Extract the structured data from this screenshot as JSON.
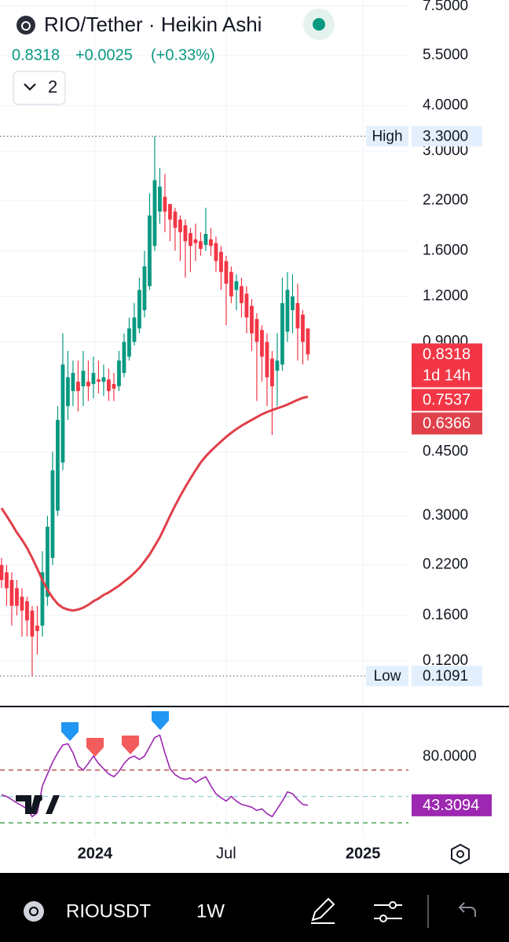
{
  "header": {
    "change": "+0.0025",
    "change_pct": "(+0.33%)",
    "indicators_count": "2"
  },
  "footer": {
    "symbol": "RIOUSDT",
    "interval": "1W"
  },
  "chart_data": [
    {
      "type": "candlestick",
      "title": "RIO/Tether · Heikin Ashi",
      "up_color": "#089981",
      "down_color": "#f23645",
      "log_scale": true,
      "grid": true,
      "ylim": [
        0.09,
        7.8
      ],
      "yticks": [
        {
          "value": 7.5,
          "label": "7.5000"
        },
        {
          "value": 5.5,
          "label": "5.5000"
        },
        {
          "value": 4,
          "label": "4.0000"
        },
        {
          "value": 3,
          "label": "3.0000"
        },
        {
          "value": 2.2,
          "label": "2.2000"
        },
        {
          "value": 1.6,
          "label": "1.6000"
        },
        {
          "value": 1.2,
          "label": "1.2000"
        },
        {
          "value": 0.9,
          "label": "0.9000"
        },
        {
          "value": 0.45,
          "label": "0.4500"
        },
        {
          "value": 0.3,
          "label": "0.3000"
        },
        {
          "value": 0.22,
          "label": "0.2200"
        },
        {
          "value": 0.16,
          "label": "0.1600"
        },
        {
          "value": 0.12,
          "label": "0.1200"
        }
      ],
      "open": [
        0.22,
        0.21,
        0.2,
        0.19,
        0.18,
        0.175,
        0.165,
        0.15,
        0.15,
        0.18,
        0.23,
        0.31,
        0.42,
        0.6,
        0.66,
        0.7,
        0.68,
        0.7,
        0.69,
        0.71,
        0.7,
        0.71,
        0.69,
        0.68,
        0.74,
        0.82,
        0.9,
        0.98,
        1.1,
        1.28,
        1.65,
        2.05,
        2.25,
        2.15,
        2.05,
        1.95,
        1.88,
        1.79,
        1.72,
        1.7,
        1.66,
        1.72,
        1.68,
        1.59,
        1.5,
        1.4,
        1.25,
        1.28,
        1.22,
        1.13,
        1.04,
        0.97,
        0.9,
        0.81,
        0.75,
        0.78,
        0.96,
        1.1,
        1.15,
        1.07,
        0.98
      ],
      "high": [
        0.23,
        0.22,
        0.21,
        0.2,
        0.19,
        0.18,
        0.17,
        0.17,
        0.24,
        0.3,
        0.45,
        0.6,
        0.95,
        0.85,
        0.8,
        0.8,
        0.85,
        0.8,
        0.82,
        0.8,
        0.78,
        0.76,
        0.74,
        0.85,
        0.95,
        1.05,
        1.15,
        1.35,
        1.6,
        2.3,
        3.3,
        2.7,
        2.6,
        2.15,
        2.1,
        2.0,
        1.95,
        1.85,
        1.9,
        1.8,
        2.1,
        1.85,
        1.75,
        1.65,
        1.55,
        1.45,
        1.38,
        1.35,
        1.28,
        1.18,
        1.08,
        1.0,
        0.95,
        0.85,
        0.95,
        1.35,
        1.4,
        1.38,
        1.3,
        1.1,
        0.98
      ],
      "low": [
        0.19,
        0.17,
        0.15,
        0.16,
        0.14,
        0.14,
        0.1091,
        0.125,
        0.14,
        0.17,
        0.22,
        0.3,
        0.4,
        0.55,
        0.6,
        0.58,
        0.6,
        0.62,
        0.63,
        0.65,
        0.64,
        0.62,
        0.62,
        0.66,
        0.72,
        0.8,
        0.88,
        0.95,
        1.05,
        1.25,
        1.6,
        1.9,
        1.8,
        1.7,
        1.6,
        1.5,
        1.35,
        1.4,
        1.5,
        1.55,
        1.6,
        1.55,
        1.4,
        1.25,
        1.0,
        1.15,
        1.1,
        1.05,
        0.95,
        0.85,
        0.62,
        0.7,
        0.6,
        0.5,
        0.6,
        0.75,
        0.9,
        0.95,
        0.8,
        0.78,
        0.8
      ],
      "close": [
        0.2,
        0.19,
        0.17,
        0.17,
        0.165,
        0.155,
        0.14,
        0.145,
        0.21,
        0.28,
        0.4,
        0.55,
        0.78,
        0.72,
        0.74,
        0.66,
        0.75,
        0.68,
        0.74,
        0.7,
        0.72,
        0.66,
        0.67,
        0.8,
        0.9,
        0.98,
        1.05,
        1.25,
        1.45,
        2.0,
        2.5,
        2.4,
        2.05,
        1.95,
        1.85,
        1.8,
        1.7,
        1.65,
        1.68,
        1.62,
        1.78,
        1.65,
        1.5,
        1.4,
        1.3,
        1.2,
        1.32,
        1.15,
        1.05,
        0.95,
        0.9,
        0.82,
        0.72,
        0.68,
        0.8,
        1.15,
        1.25,
        1.2,
        0.98,
        0.9,
        0.8318
      ],
      "series": [
        {
          "type": "line",
          "color": "#e0404a",
          "values": [
            0.315,
            0.3,
            0.285,
            0.27,
            0.258,
            0.245,
            0.23,
            0.215,
            0.2,
            0.188,
            0.179,
            0.172,
            0.168,
            0.166,
            0.165,
            0.166,
            0.168,
            0.171,
            0.175,
            0.178,
            0.182,
            0.185,
            0.189,
            0.193,
            0.198,
            0.203,
            0.209,
            0.216,
            0.225,
            0.235,
            0.248,
            0.262,
            0.28,
            0.3,
            0.32,
            0.34,
            0.36,
            0.38,
            0.4,
            0.42,
            0.437,
            0.452,
            0.466,
            0.48,
            0.494,
            0.507,
            0.519,
            0.53,
            0.54,
            0.55,
            0.56,
            0.57,
            0.578,
            0.585,
            0.592,
            0.598,
            0.606,
            0.615,
            0.624,
            0.632,
            0.6366
          ]
        }
      ],
      "countdown": "1d 14h",
      "price_tags": [
        0.7537
      ],
      "high_line": {
        "name": "High",
        "value": 3.3,
        "value_label": "3.3000"
      },
      "low_line": {
        "name": "Low",
        "value": 0.1091
      }
    },
    {
      "type": "line",
      "grid": true,
      "xlim": [
        -0.3,
        79.7
      ],
      "xticks": [
        {
          "value": 18.3,
          "label": "2024"
        },
        {
          "value": 44,
          "label": "Jul"
        },
        {
          "value": 70.8,
          "label": "2025"
        }
      ],
      "ylim": [
        20,
        117
      ],
      "yticks": [
        {
          "value": 80,
          "label": "80.0000"
        }
      ],
      "levels": [
        70,
        50,
        30
      ],
      "level_colors": [
        "#b2373f",
        "#8fd3d6",
        "#3d9a4a"
      ],
      "series": [
        {
          "color": "#9c27b0",
          "values": [
            51.2,
            50,
            47.6,
            45,
            43,
            40.6,
            34.7,
            37.6,
            58,
            67,
            76,
            83,
            89,
            90,
            83,
            73,
            70,
            75,
            80.6,
            75,
            71,
            67,
            65,
            69,
            75,
            79,
            80.6,
            78,
            80.6,
            87.6,
            94.7,
            96.5,
            83,
            71,
            66.5,
            64,
            63,
            64,
            60.6,
            63,
            65,
            58,
            52,
            49,
            46.5,
            50,
            46.5,
            44,
            43,
            41.8,
            39.4,
            40.6,
            37,
            34.7,
            40.6,
            46.5,
            53.5,
            52,
            47.6,
            44,
            43.3094
          ]
        }
      ]
    }
  ]
}
